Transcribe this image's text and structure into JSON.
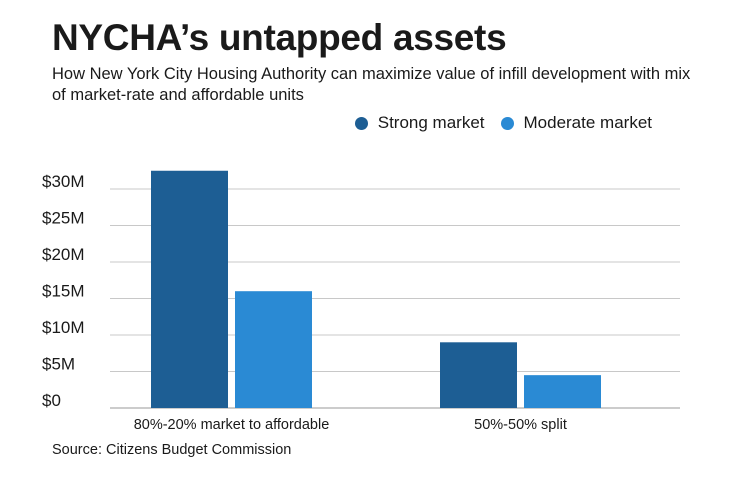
{
  "chart_data": {
    "type": "bar",
    "title": "NYCHA’s untapped assets",
    "subtitle": "How New York City Housing Authority can maximize value of infill development with mix of market-rate and affordable units",
    "categories": [
      "80%-20% market to affordable",
      "50%-50% split"
    ],
    "series": [
      {
        "name": "Strong market",
        "color": "#1d5e94",
        "values": [
          32.5,
          9.0
        ]
      },
      {
        "name": "Moderate market",
        "color": "#2a8ad4",
        "values": [
          16.0,
          4.5
        ]
      }
    ],
    "y_ticks": [
      0,
      5,
      10,
      15,
      20,
      25,
      30
    ],
    "y_tick_labels": [
      "$0",
      "$5M",
      "$10M",
      "$15M",
      "$20M",
      "$25M",
      "$30M"
    ],
    "ylim": [
      0,
      30
    ],
    "xlabel": "",
    "ylabel": "",
    "grid": true,
    "legend_position": "top-right",
    "source": "Source: Citizens Budget Commission"
  }
}
